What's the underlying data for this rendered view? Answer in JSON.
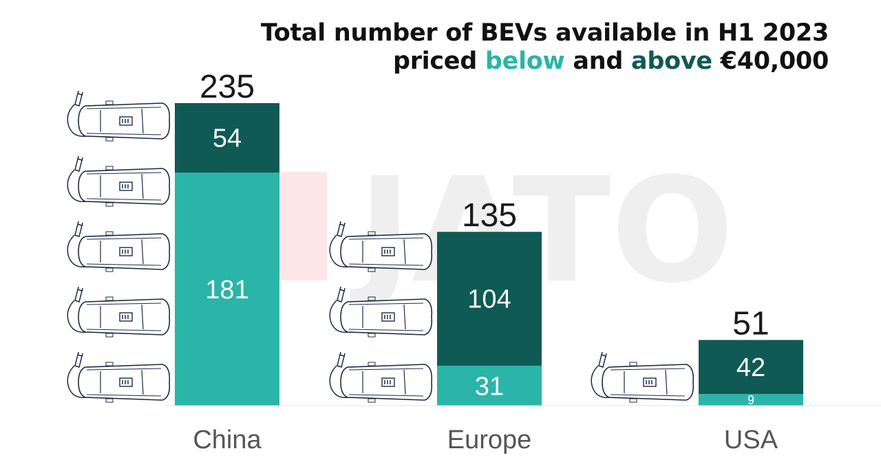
{
  "title": {
    "line1": "Total number of BEVs available in H1 2023",
    "line2_prefix": "priced ",
    "below_word": "below",
    "and_word": " and ",
    "above_word": "above",
    "line2_suffix": " €40,000"
  },
  "watermark": "JATO",
  "colors": {
    "below": "#2ab5a8",
    "above": "#0f5a54",
    "car_outline": "#1d2a44"
  },
  "chart_data": {
    "type": "bar",
    "stacked": true,
    "categories": [
      "China",
      "Europe",
      "USA"
    ],
    "series": [
      {
        "name": "below",
        "values": [
          181,
          31,
          9
        ]
      },
      {
        "name": "above",
        "values": [
          54,
          104,
          42
        ]
      }
    ],
    "totals": [
      235,
      135,
      51
    ],
    "car_icon_counts": [
      5,
      3,
      1
    ],
    "title": "Total number of BEVs available in H1 2023 priced below and above €40,000",
    "xlabel": "",
    "ylabel": "",
    "ylim": [
      0,
      235
    ],
    "grid": false
  }
}
